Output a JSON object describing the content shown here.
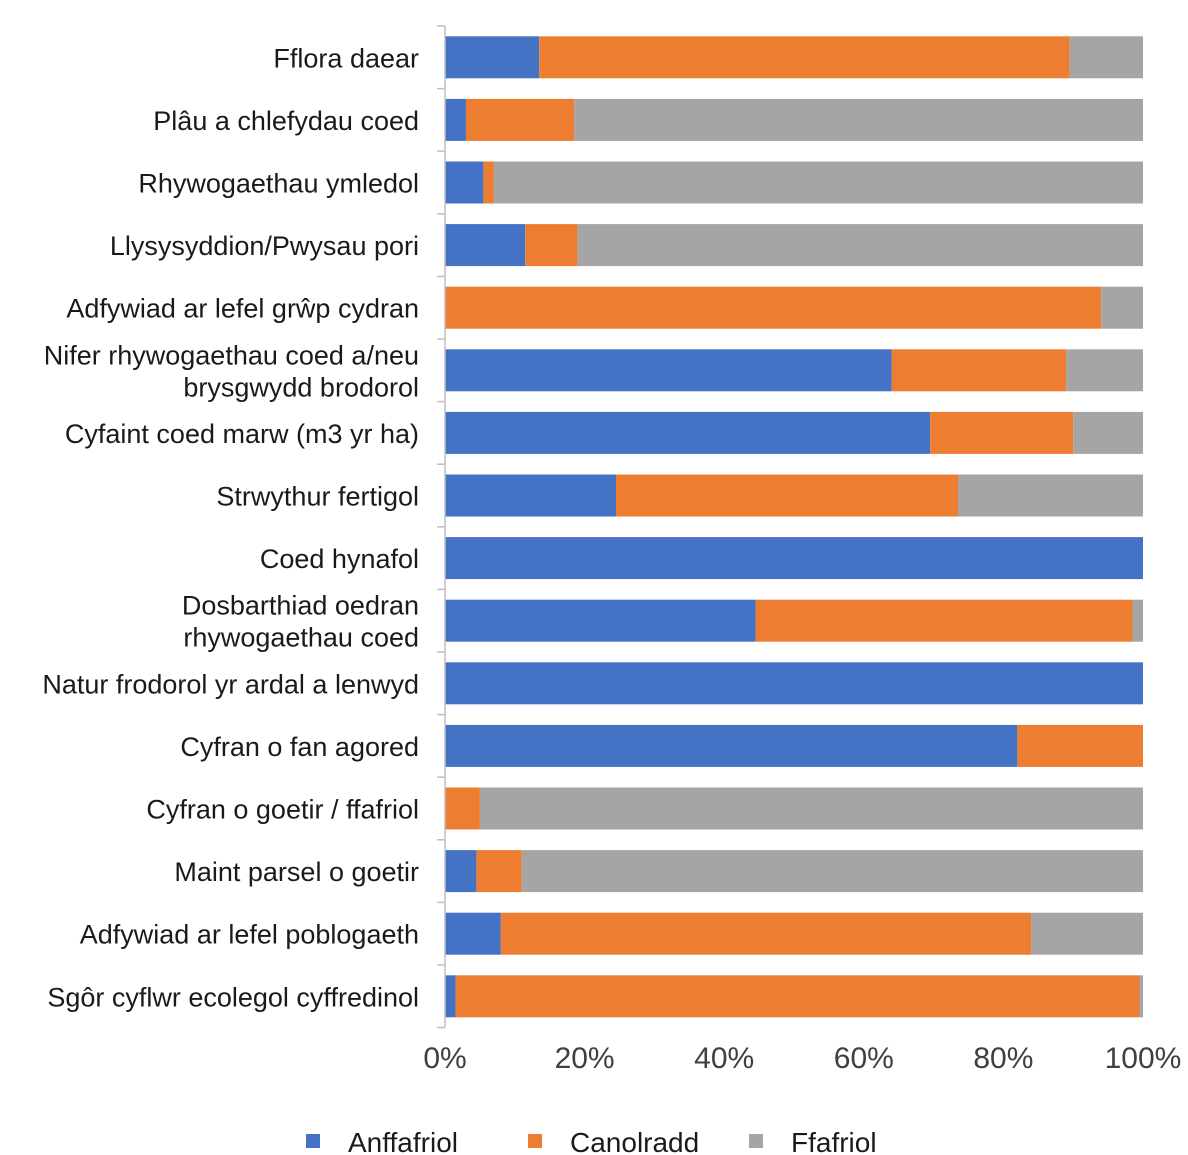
{
  "chart_data": {
    "type": "bar",
    "orientation": "horizontal",
    "stacked": "percent",
    "categories": [
      [
        "Fflora daear"
      ],
      [
        "Plâu a chlefydau coed"
      ],
      [
        "Rhywogaethau ymledol"
      ],
      [
        "Llysysyddion/Pwysau pori"
      ],
      [
        "Adfywiad ar lefel grŵp cydran"
      ],
      [
        "Nifer rhywogaethau coed a/neu",
        "brysgwydd brodorol"
      ],
      [
        "Cyfaint coed marw (m3 yr ha)"
      ],
      [
        "Strwythur fertigol"
      ],
      [
        "Coed hynafol"
      ],
      [
        "Dosbarthiad oedran",
        "rhywogaethau coed"
      ],
      [
        "Natur frodorol yr ardal a lenwyd"
      ],
      [
        "Cyfran o fan agored"
      ],
      [
        "Cyfran o goetir / ffafriol"
      ],
      [
        "Maint parsel o goetir"
      ],
      [
        "Adfywiad ar lefel poblogaeth"
      ],
      [
        "Sgôr cyflwr ecolegol cyffredinol"
      ]
    ],
    "series": [
      {
        "name": "Anffafriol",
        "color": "#4472C4",
        "values": [
          13.5,
          3,
          5.5,
          11.5,
          0,
          64,
          69.5,
          24.5,
          100,
          44.5,
          100,
          82,
          0,
          4.5,
          8,
          1.5
        ]
      },
      {
        "name": "Canolradd",
        "color": "#ED7D31",
        "values": [
          76,
          15.5,
          1.5,
          7.5,
          94,
          25,
          20.5,
          49,
          0,
          54,
          0,
          18,
          5,
          6.5,
          76,
          98
        ]
      },
      {
        "name": "Ffafriol",
        "color": "#A5A5A5",
        "values": [
          10.5,
          81.5,
          93,
          81,
          6,
          11,
          10,
          26.5,
          0,
          1.5,
          0,
          0,
          95,
          89,
          16,
          0.5
        ]
      }
    ],
    "xlim": [
      0,
      100
    ],
    "xticks": [
      "0%",
      "20%",
      "40%",
      "60%",
      "80%",
      "100%"
    ],
    "legend_position": "bottom",
    "grid": false,
    "title": "",
    "xlabel": "",
    "ylabel": ""
  }
}
